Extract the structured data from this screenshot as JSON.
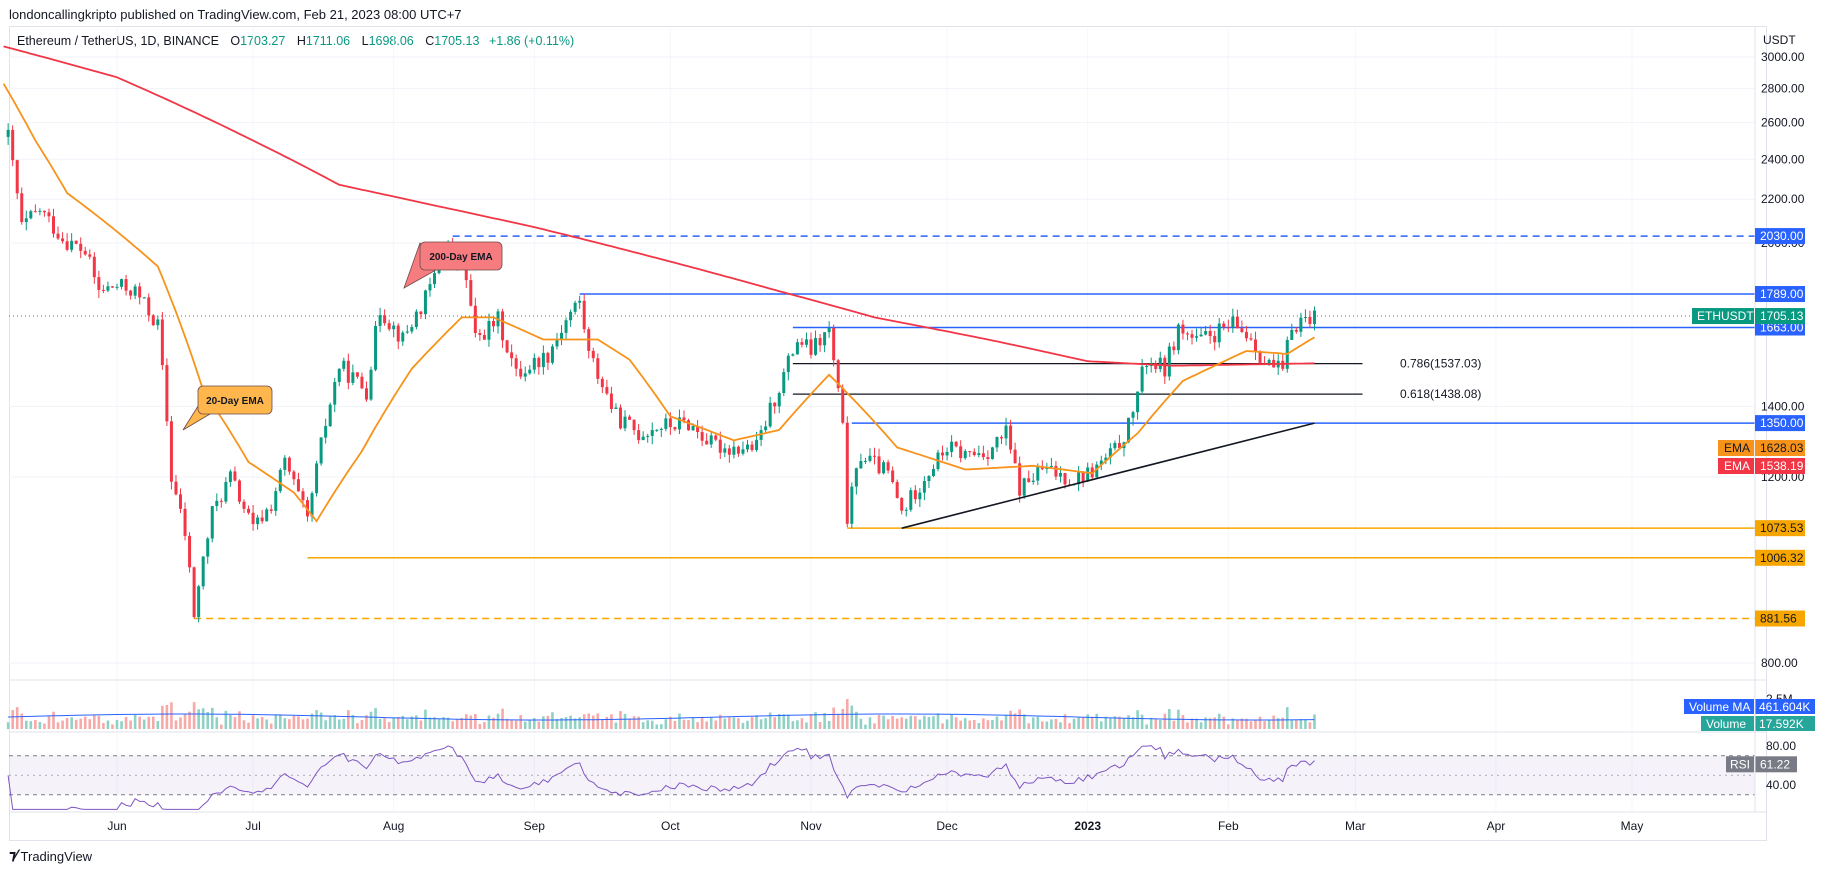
{
  "publisher": "londoncallingkripto published on TradingView.com, Feb 21, 2023 08:00 UTC+7",
  "legend": {
    "symbol": "Ethereum / TetherUS, 1D, BINANCE",
    "open_label": "O",
    "open": "1703.27",
    "high_label": "H",
    "high": "1711.06",
    "low_label": "L",
    "low": "1698.06",
    "close_label": "C",
    "close": "1705.13",
    "change": "+1.86 (+0.11%)"
  },
  "branding": "TradingView",
  "chart_data": {
    "type": "candlestick",
    "symbol": "ETHUSDT",
    "currency": "USDT",
    "interval": "1D",
    "x_range": [
      "2022-05-07",
      "2023-05-31"
    ],
    "y_range": [
      720,
      3100
    ],
    "y_ticks": [
      "3000.00",
      "2800.00",
      "2600.00",
      "2400.00",
      "2200.00",
      "2000.00",
      "1400.00",
      "1200.00",
      "800.00"
    ],
    "x_ticks": [
      "Jun",
      "Jul",
      "Aug",
      "Sep",
      "Oct",
      "Nov",
      "Dec",
      "2023",
      "Feb",
      "Mar",
      "Apr",
      "May"
    ],
    "close_path": [
      [
        "2022-05-08",
        2520
      ],
      [
        "2022-05-11",
        2070
      ],
      [
        "2022-05-15",
        2150
      ],
      [
        "2022-05-20",
        2020
      ],
      [
        "2022-05-25",
        1960
      ],
      [
        "2022-05-28",
        1800
      ],
      [
        "2022-06-01",
        1820
      ],
      [
        "2022-06-05",
        1800
      ],
      [
        "2022-06-10",
        1670
      ],
      [
        "2022-06-13",
        1200
      ],
      [
        "2022-06-16",
        1060
      ],
      [
        "2022-06-18",
        890
      ],
      [
        "2022-06-22",
        1110
      ],
      [
        "2022-06-26",
        1200
      ],
      [
        "2022-07-01",
        1070
      ],
      [
        "2022-07-05",
        1130
      ],
      [
        "2022-07-08",
        1240
      ],
      [
        "2022-07-13",
        1090
      ],
      [
        "2022-07-17",
        1350
      ],
      [
        "2022-07-20",
        1530
      ],
      [
        "2022-07-26",
        1450
      ],
      [
        "2022-07-29",
        1730
      ],
      [
        "2022-08-03",
        1620
      ],
      [
        "2022-08-08",
        1770
      ],
      [
        "2022-08-13",
        1990
      ],
      [
        "2022-08-17",
        1850
      ],
      [
        "2022-08-19",
        1620
      ],
      [
        "2022-08-24",
        1690
      ],
      [
        "2022-08-28",
        1500
      ],
      [
        "2022-09-04",
        1570
      ],
      [
        "2022-09-09",
        1720
      ],
      [
        "2022-09-11",
        1760
      ],
      [
        "2022-09-13",
        1570
      ],
      [
        "2022-09-19",
        1370
      ],
      [
        "2022-09-24",
        1320
      ],
      [
        "2022-09-28",
        1340
      ],
      [
        "2022-10-05",
        1350
      ],
      [
        "2022-10-10",
        1290
      ],
      [
        "2022-10-13",
        1280
      ],
      [
        "2022-10-20",
        1280
      ],
      [
        "2022-10-25",
        1460
      ],
      [
        "2022-10-29",
        1620
      ],
      [
        "2022-11-01",
        1580
      ],
      [
        "2022-11-05",
        1650
      ],
      [
        "2022-11-08",
        1330
      ],
      [
        "2022-11-09",
        1100
      ],
      [
        "2022-11-12",
        1260
      ],
      [
        "2022-11-18",
        1210
      ],
      [
        "2022-11-21",
        1110
      ],
      [
        "2022-11-26",
        1200
      ],
      [
        "2022-12-01",
        1280
      ],
      [
        "2022-12-05",
        1260
      ],
      [
        "2022-12-10",
        1270
      ],
      [
        "2022-12-14",
        1320
      ],
      [
        "2022-12-17",
        1170
      ],
      [
        "2022-12-22",
        1220
      ],
      [
        "2022-12-29",
        1195
      ],
      [
        "2023-01-02",
        1215
      ],
      [
        "2023-01-07",
        1270
      ],
      [
        "2023-01-10",
        1340
      ],
      [
        "2023-01-14",
        1550
      ],
      [
        "2023-01-18",
        1520
      ],
      [
        "2023-01-21",
        1660
      ],
      [
        "2023-01-25",
        1610
      ],
      [
        "2023-01-29",
        1640
      ],
      [
        "2023-02-02",
        1670
      ],
      [
        "2023-02-06",
        1630
      ],
      [
        "2023-02-09",
        1540
      ],
      [
        "2023-02-13",
        1510
      ],
      [
        "2023-02-15",
        1670
      ],
      [
        "2023-02-18",
        1700
      ],
      [
        "2023-02-20",
        1705
      ]
    ],
    "ema20_path": [
      [
        "2022-05-07",
        2830
      ],
      [
        "2022-05-14",
        2500
      ],
      [
        "2022-05-21",
        2230
      ],
      [
        "2022-06-01",
        2050
      ],
      [
        "2022-06-10",
        1900
      ],
      [
        "2022-06-20",
        1450
      ],
      [
        "2022-06-30",
        1240
      ],
      [
        "2022-07-10",
        1160
      ],
      [
        "2022-07-15",
        1090
      ],
      [
        "2022-07-25",
        1270
      ],
      [
        "2022-08-05",
        1520
      ],
      [
        "2022-08-16",
        1700
      ],
      [
        "2022-08-23",
        1700
      ],
      [
        "2022-09-03",
        1620
      ],
      [
        "2022-09-15",
        1620
      ],
      [
        "2022-09-22",
        1550
      ],
      [
        "2022-10-01",
        1370
      ],
      [
        "2022-10-15",
        1300
      ],
      [
        "2022-10-25",
        1330
      ],
      [
        "2022-11-05",
        1500
      ],
      [
        "2022-11-20",
        1280
      ],
      [
        "2022-12-05",
        1220
      ],
      [
        "2022-12-20",
        1230
      ],
      [
        "2023-01-02",
        1210
      ],
      [
        "2023-01-12",
        1320
      ],
      [
        "2023-01-22",
        1480
      ],
      [
        "2023-02-05",
        1580
      ],
      [
        "2023-02-14",
        1570
      ],
      [
        "2023-02-20",
        1628
      ]
    ],
    "ema200_path": [
      [
        "2022-05-07",
        3070
      ],
      [
        "2022-06-01",
        2870
      ],
      [
        "2022-07-01",
        2500
      ],
      [
        "2022-07-20",
        2270
      ],
      [
        "2022-08-10",
        2170
      ],
      [
        "2022-09-01",
        2070
      ],
      [
        "2022-10-01",
        1920
      ],
      [
        "2022-10-25",
        1800
      ],
      [
        "2022-11-15",
        1700
      ],
      [
        "2022-12-10",
        1620
      ],
      [
        "2023-01-01",
        1545
      ],
      [
        "2023-01-20",
        1530
      ],
      [
        "2023-02-20",
        1538
      ]
    ],
    "horizontal_levels": [
      {
        "value": 2030.0,
        "label": "2030.00",
        "style": "dashed",
        "color": "#2962ff",
        "from": "2022-08-14"
      },
      {
        "value": 1789.0,
        "label": "1789.00",
        "style": "solid",
        "color": "#2962ff",
        "from": "2022-09-11"
      },
      {
        "value": 1663.0,
        "label": "1663.00",
        "style": "solid",
        "color": "#2962ff",
        "from": "2022-10-28"
      },
      {
        "value": 1350.0,
        "label": "1350.00",
        "style": "solid",
        "color": "#2962ff",
        "from": "2022-11-10"
      },
      {
        "value": 1073.53,
        "label": "1073.53",
        "style": "solid",
        "color": "#f7a600",
        "from": "2022-11-09"
      },
      {
        "value": 1006.32,
        "label": "1006.32",
        "style": "solid",
        "color": "#f7a600",
        "from": "2022-07-13"
      },
      {
        "value": 881.56,
        "label": "881.56",
        "style": "dashed",
        "color": "#f7a600",
        "from": "2022-06-18"
      }
    ],
    "fib_levels": [
      {
        "ratio": "0.786",
        "value": 1537.03,
        "label": "0.786(1537.03)",
        "from": "2022-10-28",
        "to": "2023-03-07"
      },
      {
        "ratio": "0.618",
        "value": 1438.08,
        "label": "0.618(1438.08)",
        "from": "2022-10-28",
        "to": "2023-03-07"
      }
    ],
    "trendline": {
      "from": [
        "2022-11-21",
        1073.53
      ],
      "to": [
        "2023-02-20",
        1350
      ]
    },
    "last_price_tag": {
      "name": "ETHUSDT",
      "value": "1705.13"
    },
    "ema_tags": [
      {
        "name": "EMA",
        "value": "1628.03",
        "color": "#f7931a"
      },
      {
        "name": "EMA",
        "value": "1538.19",
        "color": "#f23645"
      }
    ],
    "callouts": [
      {
        "text": "200-Day EMA",
        "color": "#f77c80"
      },
      {
        "text": "20-Day EMA",
        "color": "#ffb74d"
      }
    ],
    "volume": {
      "ma_label": "Volume MA",
      "ma_value": "461.604K",
      "label": "Volume",
      "value": "17.592K",
      "scale_label": "2.5M"
    },
    "rsi": {
      "label": "RSI",
      "value": "61.22",
      "levels": [
        "80.00",
        "40.00"
      ],
      "upper_band": 70,
      "lower_band": 30
    }
  },
  "colors": {
    "up": "#089981",
    "down": "#f23645",
    "ema20": "#f7931a",
    "ema200": "#f23645",
    "level_blue": "#2962ff",
    "level_orange": "#f7a600",
    "rsi": "#7e57c2"
  }
}
